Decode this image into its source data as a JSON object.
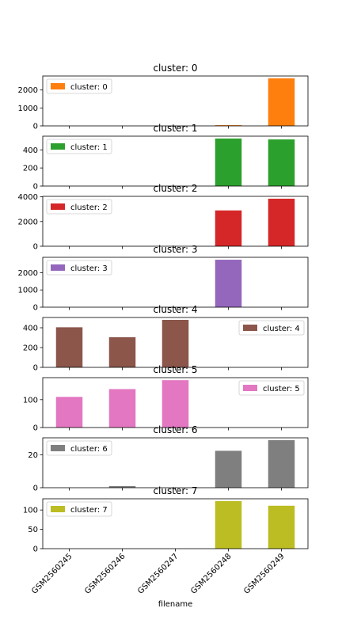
{
  "chart_data": {
    "type": "bar",
    "layout": "stacked-subplots",
    "categories": [
      "GSM2560245",
      "GSM2560246",
      "GSM2560247",
      "GSM2560248",
      "GSM2560249"
    ],
    "xlabel": "filename",
    "panels": [
      {
        "title": "cluster: 0",
        "series_name": "cluster: 0",
        "color": "#ff7f0e",
        "values": [
          0,
          0,
          0,
          40,
          2650
        ],
        "ylim": [
          0,
          2780
        ],
        "yticks": [
          0,
          1000,
          2000
        ],
        "legend": "top-left"
      },
      {
        "title": "cluster: 1",
        "series_name": "cluster: 1",
        "color": "#2ca02c",
        "values": [
          0,
          0,
          0,
          525,
          515
        ],
        "ylim": [
          0,
          551
        ],
        "yticks": [
          0,
          200,
          400
        ],
        "legend": "top-left"
      },
      {
        "title": "cluster: 2",
        "series_name": "cluster: 2",
        "color": "#d62728",
        "values": [
          0,
          0,
          0,
          2900,
          3850
        ],
        "ylim": [
          0,
          4040
        ],
        "yticks": [
          0,
          2000,
          4000
        ],
        "legend": "top-left"
      },
      {
        "title": "cluster: 3",
        "series_name": "cluster: 3",
        "color": "#9467bd",
        "values": [
          0,
          0,
          0,
          2750,
          0
        ],
        "ylim": [
          0,
          2890
        ],
        "yticks": [
          0,
          1000,
          2000
        ],
        "legend": "top-left"
      },
      {
        "title": "cluster: 4",
        "series_name": "cluster: 4",
        "color": "#8c564b",
        "values": [
          405,
          305,
          480,
          0,
          0
        ],
        "ylim": [
          0,
          504
        ],
        "yticks": [
          0,
          200,
          400
        ],
        "legend": "top-right"
      },
      {
        "title": "cluster: 5",
        "series_name": "cluster: 5",
        "color": "#e377c2",
        "values": [
          110,
          138,
          170,
          0,
          0
        ],
        "ylim": [
          0,
          179
        ],
        "yticks": [
          0,
          100
        ],
        "legend": "top-right"
      },
      {
        "title": "cluster: 6",
        "series_name": "cluster: 6",
        "color": "#7f7f7f",
        "values": [
          0,
          1,
          0,
          22.5,
          29
        ],
        "ylim": [
          0,
          30.4
        ],
        "yticks": [
          0,
          20
        ],
        "legend": "top-left"
      },
      {
        "title": "cluster: 7",
        "series_name": "cluster: 7",
        "color": "#bcbd22",
        "values": [
          0,
          0,
          0,
          123,
          111
        ],
        "ylim": [
          0,
          129
        ],
        "yticks": [
          0,
          50,
          100
        ],
        "legend": "top-left"
      }
    ]
  }
}
